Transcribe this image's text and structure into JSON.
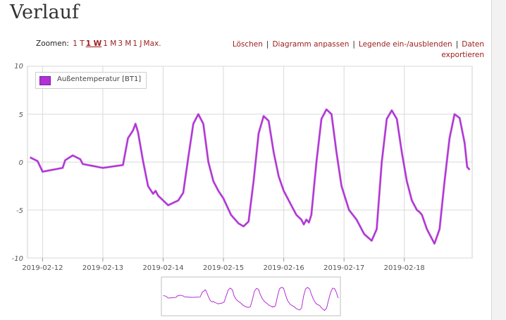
{
  "page": {
    "title": "Verlauf"
  },
  "zoom": {
    "label": "Zoomen:",
    "options": [
      {
        "label": "1 T"
      },
      {
        "label": "1 W",
        "active": true
      },
      {
        "label": "1 M"
      },
      {
        "label": "3 M"
      },
      {
        "label": "1 J"
      },
      {
        "label": "Max."
      }
    ]
  },
  "actions": {
    "delete": "Löschen",
    "customize": "Diagramm anpassen",
    "legend_toggle": "Legende ein-/ausblenden",
    "export": "Daten exportieren"
  },
  "colors": {
    "series": "#b32fd8",
    "grid": "#d9d9d9",
    "link": "#9b1b1b"
  },
  "chart_data": {
    "type": "line",
    "series": [
      {
        "name": "Außentemperatur [BT1]",
        "points": [
          [
            "2019-02-11 19:00",
            0.5
          ],
          [
            "2019-02-11 22:00",
            0.1
          ],
          [
            "2019-02-12 00:00",
            -1.0
          ],
          [
            "2019-02-12 08:00",
            -0.6
          ],
          [
            "2019-02-12 09:00",
            0.2
          ],
          [
            "2019-02-12 12:00",
            0.7
          ],
          [
            "2019-02-12 15:00",
            0.3
          ],
          [
            "2019-02-12 16:00",
            -0.2
          ],
          [
            "2019-02-13 00:00",
            -0.6
          ],
          [
            "2019-02-13 08:00",
            -0.3
          ],
          [
            "2019-02-13 10:00",
            2.5
          ],
          [
            "2019-02-13 12:00",
            3.3
          ],
          [
            "2019-02-13 13:00",
            4.0
          ],
          [
            "2019-02-13 14:00",
            3.1
          ],
          [
            "2019-02-13 16:00",
            0.1
          ],
          [
            "2019-02-13 18:00",
            -2.5
          ],
          [
            "2019-02-13 20:00",
            -3.3
          ],
          [
            "2019-02-13 21:00",
            -3.0
          ],
          [
            "2019-02-13 22:00",
            -3.5
          ],
          [
            "2019-02-14 00:00",
            -4.0
          ],
          [
            "2019-02-14 02:00",
            -4.5
          ],
          [
            "2019-02-14 06:00",
            -4.0
          ],
          [
            "2019-02-14 08:00",
            -3.2
          ],
          [
            "2019-02-14 10:00",
            0.5
          ],
          [
            "2019-02-14 12:00",
            4.0
          ],
          [
            "2019-02-14 14:00",
            5.0
          ],
          [
            "2019-02-14 16:00",
            4.0
          ],
          [
            "2019-02-14 18:00",
            0.0
          ],
          [
            "2019-02-14 20:00",
            -2.0
          ],
          [
            "2019-02-14 22:00",
            -3.0
          ],
          [
            "2019-02-15 00:00",
            -3.8
          ],
          [
            "2019-02-15 03:00",
            -5.5
          ],
          [
            "2019-02-15 06:00",
            -6.4
          ],
          [
            "2019-02-15 08:00",
            -6.7
          ],
          [
            "2019-02-15 10:00",
            -6.2
          ],
          [
            "2019-02-15 12:00",
            -2.0
          ],
          [
            "2019-02-15 14:00",
            3.0
          ],
          [
            "2019-02-15 16:00",
            4.8
          ],
          [
            "2019-02-15 18:00",
            4.3
          ],
          [
            "2019-02-15 20:00",
            1.0
          ],
          [
            "2019-02-15 22:00",
            -1.5
          ],
          [
            "2019-02-16 00:00",
            -3.0
          ],
          [
            "2019-02-16 03:00",
            -4.5
          ],
          [
            "2019-02-16 05:00",
            -5.5
          ],
          [
            "2019-02-16 07:00",
            -6.0
          ],
          [
            "2019-02-16 08:00",
            -6.5
          ],
          [
            "2019-02-16 09:00",
            -6.0
          ],
          [
            "2019-02-16 10:00",
            -6.3
          ],
          [
            "2019-02-16 11:00",
            -5.5
          ],
          [
            "2019-02-16 13:00",
            0.0
          ],
          [
            "2019-02-16 15:00",
            4.5
          ],
          [
            "2019-02-16 17:00",
            5.5
          ],
          [
            "2019-02-16 19:00",
            5.0
          ],
          [
            "2019-02-16 21:00",
            1.0
          ],
          [
            "2019-02-16 23:00",
            -2.5
          ],
          [
            "2019-02-17 02:00",
            -5.0
          ],
          [
            "2019-02-17 05:00",
            -6.0
          ],
          [
            "2019-02-17 08:00",
            -7.5
          ],
          [
            "2019-02-17 11:00",
            -8.2
          ],
          [
            "2019-02-17 13:00",
            -7.0
          ],
          [
            "2019-02-17 15:00",
            0.0
          ],
          [
            "2019-02-17 17:00",
            4.5
          ],
          [
            "2019-02-17 19:00",
            5.4
          ],
          [
            "2019-02-17 21:00",
            4.5
          ],
          [
            "2019-02-17 23:00",
            1.0
          ],
          [
            "2019-02-18 01:00",
            -2.0
          ],
          [
            "2019-02-18 03:00",
            -4.0
          ],
          [
            "2019-02-18 05:00",
            -5.0
          ],
          [
            "2019-02-18 06:00",
            -5.2
          ],
          [
            "2019-02-18 07:00",
            -5.5
          ],
          [
            "2019-02-18 09:00",
            -7.0
          ],
          [
            "2019-02-18 12:00",
            -8.5
          ],
          [
            "2019-02-18 14:00",
            -7.0
          ],
          [
            "2019-02-18 16:00",
            -2.0
          ],
          [
            "2019-02-18 18:00",
            2.5
          ],
          [
            "2019-02-18 20:00",
            5.0
          ],
          [
            "2019-02-18 22:00",
            4.6
          ],
          [
            "2019-02-19 00:00",
            2.0
          ],
          [
            "2019-02-19 01:00",
            -0.5
          ],
          [
            "2019-02-19 02:00",
            -0.8
          ]
        ]
      }
    ],
    "x_ticks": [
      "2019-02-12",
      "2019-02-13",
      "2019-02-14",
      "2019-02-15",
      "2019-02-16",
      "2019-02-17",
      "2019-02-18"
    ],
    "xlim": [
      "2019-02-11 18:00",
      "2019-02-19 03:00"
    ],
    "y_ticks": [
      "10",
      "5",
      "0",
      "-5",
      "-10"
    ],
    "ylim": [
      -10,
      10
    ],
    "grid": true,
    "legend_position": "top-left",
    "has_overview_navigator": true
  }
}
